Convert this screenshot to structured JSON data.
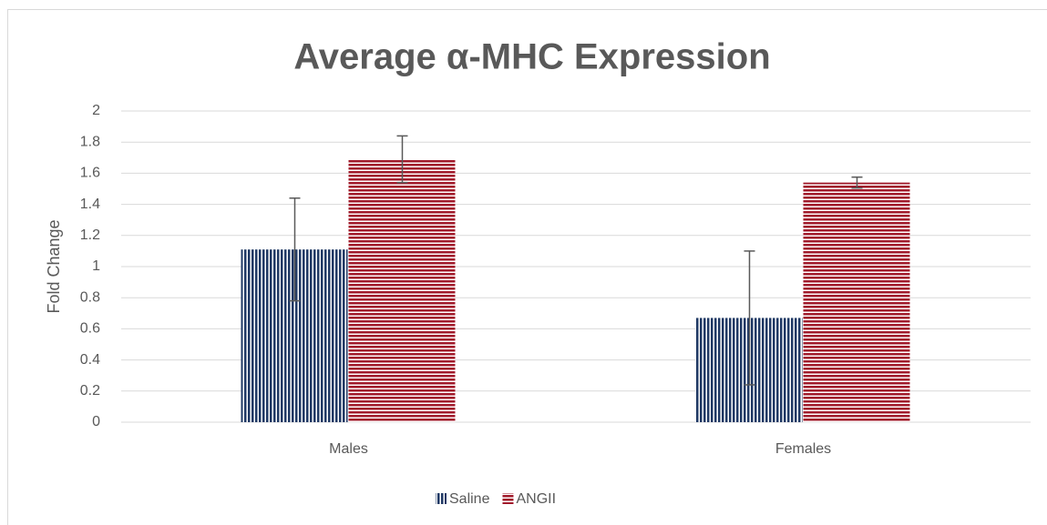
{
  "chart_data": {
    "type": "bar",
    "title": "Average α-MHC Expression",
    "y_label": "Fold Change",
    "categories": [
      "Males",
      "Females"
    ],
    "series": [
      {
        "name": "Saline",
        "color": "#1f3864",
        "pattern": "vertical-stripes",
        "values": [
          1.11,
          0.67
        ],
        "errors": [
          0.33,
          0.43
        ]
      },
      {
        "name": "ANGII",
        "color": "#a0192a",
        "pattern": "horizontal-stripes",
        "values": [
          1.69,
          1.54
        ],
        "errors": [
          0.15,
          0.035
        ]
      }
    ],
    "ylim": [
      0,
      2
    ],
    "yticks": [
      0,
      0.2,
      0.4,
      0.6,
      0.8,
      1,
      1.2,
      1.4,
      1.6,
      1.8,
      2
    ],
    "grid": true,
    "legend": "bottom"
  }
}
